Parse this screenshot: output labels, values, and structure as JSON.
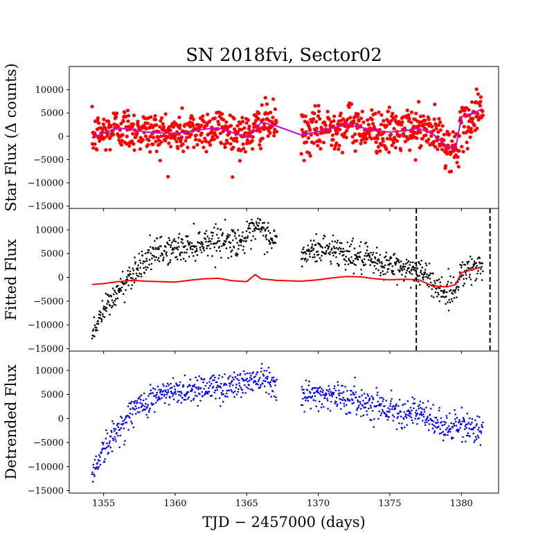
{
  "chart_data": {
    "type": "scatter",
    "title": "SN 2018fvi, Sector02",
    "xlabel": "TJD − 2457000 (days)",
    "xlim": [
      1352.6,
      1382.6
    ],
    "x_ticks": [
      "1355",
      "1360",
      "1365",
      "1370",
      "1375",
      "1380"
    ],
    "x_tick_values": [
      1355,
      1360,
      1365,
      1370,
      1375,
      1380
    ],
    "gap": [
      1367.1,
      1368.8
    ],
    "panels": [
      {
        "ylabel": "Star Flux (Δ counts)",
        "ylim": [
          -15500,
          15000
        ],
        "y_ticks": [
          "−15000",
          "−10000",
          "−5000",
          "0",
          "5000",
          "10000"
        ],
        "y_tick_values": [
          -15000,
          -10000,
          -5000,
          0,
          5000,
          10000
        ],
        "series": [
          {
            "kind": "points",
            "color": "#ff0000",
            "trend": [
              [
                1354.2,
                0
              ],
              [
                1355,
                800
              ],
              [
                1356,
                2000
              ],
              [
                1357,
                1500
              ],
              [
                1358,
                900
              ],
              [
                1359,
                700
              ],
              [
                1360,
                500
              ],
              [
                1361,
                1000
              ],
              [
                1362,
                1600
              ],
              [
                1363,
                1900
              ],
              [
                1364,
                900
              ],
              [
                1365,
                0
              ],
              [
                1365.6,
                1200
              ],
              [
                1366,
                2800
              ],
              [
                1367,
                2600
              ],
              [
                1369,
                500
              ],
              [
                1370,
                1200
              ],
              [
                1371,
                2000
              ],
              [
                1372,
                2400
              ],
              [
                1373,
                2000
              ],
              [
                1374,
                1300
              ],
              [
                1375,
                800
              ],
              [
                1376,
                1200
              ],
              [
                1377,
                1600
              ],
              [
                1378,
                800
              ],
              [
                1379,
                -1800
              ],
              [
                1379.5,
                -3500
              ],
              [
                1380,
                1000
              ],
              [
                1381,
                5000
              ],
              [
                1381.5,
                7000
              ]
            ],
            "noise": 2300,
            "count": 1000
          },
          {
            "kind": "line",
            "color": "#cc00cc",
            "points": [
              [
                1354.2,
                -400
              ],
              [
                1355,
                700
              ],
              [
                1356,
                1800
              ],
              [
                1357,
                1400
              ],
              [
                1358,
                900
              ],
              [
                1359,
                700
              ],
              [
                1360,
                600
              ],
              [
                1361,
                1000
              ],
              [
                1362,
                1500
              ],
              [
                1363,
                1800
              ],
              [
                1364,
                800
              ],
              [
                1365,
                -200
              ],
              [
                1365.6,
                1200
              ],
              [
                1366,
                3000
              ],
              [
                1367,
                2300
              ],
              [
                1368.8,
                300
              ],
              [
                1370,
                1000
              ],
              [
                1371,
                1800
              ],
              [
                1372,
                2500
              ],
              [
                1373,
                1900
              ],
              [
                1374,
                1200
              ],
              [
                1375,
                900
              ],
              [
                1376,
                1200
              ],
              [
                1377,
                1700
              ],
              [
                1378,
                500
              ],
              [
                1379,
                -2200
              ],
              [
                1379.6,
                -2600
              ],
              [
                1380,
                4200
              ],
              [
                1381,
                5200
              ],
              [
                1381.4,
                5800
              ]
            ]
          }
        ]
      },
      {
        "ylabel": "Fitted Flux",
        "ylim": [
          -15500,
          14500
        ],
        "y_ticks": [
          "−15000",
          "−10000",
          "−5000",
          "0",
          "5000",
          "10000"
        ],
        "y_tick_values": [
          -15000,
          -10000,
          -5000,
          0,
          5000,
          10000
        ],
        "vlines": [
          1376.85,
          1382.0
        ],
        "series": [
          {
            "kind": "points",
            "color": "#000000",
            "trend": [
              [
                1354.2,
                -12000
              ],
              [
                1355,
                -7000
              ],
              [
                1356,
                -3000
              ],
              [
                1357,
                1000
              ],
              [
                1358,
                4000
              ],
              [
                1359,
                5500
              ],
              [
                1360,
                6000
              ],
              [
                1361,
                6500
              ],
              [
                1362,
                7500
              ],
              [
                1363,
                8000
              ],
              [
                1364,
                7500
              ],
              [
                1365,
                8000
              ],
              [
                1365.8,
                10500
              ],
              [
                1367,
                7500
              ],
              [
                1368.8,
                4500
              ],
              [
                1370,
                6000
              ],
              [
                1371,
                6000
              ],
              [
                1372,
                5000
              ],
              [
                1373,
                4000
              ],
              [
                1374,
                3000
              ],
              [
                1375,
                2500
              ],
              [
                1376,
                2000
              ],
              [
                1377,
                1500
              ],
              [
                1378,
                -1000
              ],
              [
                1379,
                -3500
              ],
              [
                1379.6,
                -2500
              ],
              [
                1380,
                1500
              ],
              [
                1381,
                2000
              ],
              [
                1381.5,
                2000
              ]
            ],
            "noise": 1500,
            "count": 1000
          },
          {
            "kind": "line",
            "color": "#ff0000",
            "points": [
              [
                1354.2,
                -1500
              ],
              [
                1355,
                -1300
              ],
              [
                1356,
                -900
              ],
              [
                1357,
                -600
              ],
              [
                1358,
                -800
              ],
              [
                1359,
                -900
              ],
              [
                1360,
                -1000
              ],
              [
                1361,
                -600
              ],
              [
                1362,
                -300
              ],
              [
                1363,
                -200
              ],
              [
                1364,
                -700
              ],
              [
                1365,
                -900
              ],
              [
                1365.6,
                600
              ],
              [
                1366,
                -300
              ],
              [
                1367,
                -600
              ],
              [
                1368.8,
                -800
              ],
              [
                1370,
                -500
              ],
              [
                1371,
                -100
              ],
              [
                1372,
                200
              ],
              [
                1373,
                100
              ],
              [
                1374,
                -300
              ],
              [
                1375,
                -500
              ],
              [
                1376,
                -400
              ],
              [
                1377,
                -500
              ],
              [
                1378,
                -1800
              ],
              [
                1379,
                -2000
              ],
              [
                1379.6,
                -1500
              ],
              [
                1380,
                1000
              ],
              [
                1381,
                1800
              ],
              [
                1381.4,
                2200
              ]
            ]
          }
        ]
      },
      {
        "ylabel": "Detrended Flux",
        "ylim": [
          -15500,
          14000
        ],
        "y_ticks": [
          "−15000",
          "−10000",
          "−5000",
          "0",
          "5000",
          "10000"
        ],
        "y_tick_values": [
          -15000,
          -10000,
          -5000,
          0,
          5000,
          10000
        ],
        "series": [
          {
            "kind": "points",
            "color": "#0000ff",
            "trend": [
              [
                1354.2,
                -11000
              ],
              [
                1355,
                -6500
              ],
              [
                1356,
                -2500
              ],
              [
                1357,
                1500
              ],
              [
                1358,
                3500
              ],
              [
                1359,
                5000
              ],
              [
                1360,
                5500
              ],
              [
                1361,
                6000
              ],
              [
                1362,
                6500
              ],
              [
                1363,
                6500
              ],
              [
                1364,
                7000
              ],
              [
                1365,
                7500
              ],
              [
                1366,
                9000
              ],
              [
                1367,
                7500
              ],
              [
                1368.8,
                4500
              ],
              [
                1370,
                5000
              ],
              [
                1371,
                5000
              ],
              [
                1372,
                4000
              ],
              [
                1373,
                3500
              ],
              [
                1374,
                3000
              ],
              [
                1375,
                2000
              ],
              [
                1376,
                1500
              ],
              [
                1377,
                1000
              ],
              [
                1378,
                -500
              ],
              [
                1379,
                -2000
              ],
              [
                1380,
                -1500
              ],
              [
                1381,
                -2000
              ],
              [
                1381.5,
                -2000
              ]
            ],
            "noise": 1500,
            "count": 1000
          }
        ]
      }
    ]
  }
}
